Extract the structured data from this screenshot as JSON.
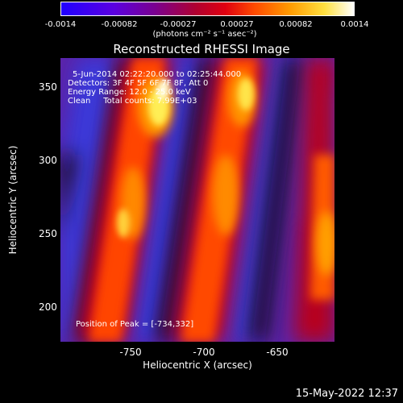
{
  "colorbar": {
    "tick_labels": [
      "-0.0014",
      "-0.00082",
      "-0.00027",
      "0.00027",
      "0.00082",
      "0.0014"
    ],
    "units_label": "(photons cm⁻² s⁻¹ asec⁻²)"
  },
  "plot": {
    "title": "Reconstructed RHESSI Image",
    "info_lines": [
      "5-Jun-2014 02:22:20.000 to 02:25:44.000",
      "Detectors: 3F 4F 5F 6F 7F 8F, Att 0",
      "Energy Range: 12.0 - 25.0 keV",
      "Clean     Total counts: 7.99E+03"
    ],
    "peak_label": "Position of Peak = [-734,332]",
    "x_label": "Heliocentric X (arcsec)",
    "y_label": "Heliocentric Y (arcsec)",
    "x_ticks": [
      "-750",
      "-700",
      "-650"
    ],
    "y_ticks": [
      "350",
      "300",
      "250",
      "200"
    ]
  },
  "timestamp": "15-May-2022 12:37"
}
